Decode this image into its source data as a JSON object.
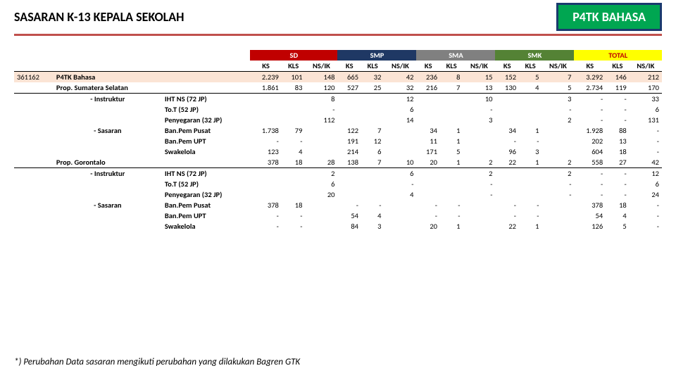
{
  "header": {
    "title": "SASARAN K-13 KEPALA SEKOLAH",
    "badge": "P4TK BAHASA"
  },
  "colors": {
    "accent_red": "#c00000",
    "smp": "#1f3864",
    "sma": "#808080",
    "smk": "#548235",
    "total_bg": "#ffff00",
    "code_row": "#fbe4d5",
    "badge_bg": "#00a651",
    "badge_border": "#1a3a6e"
  },
  "groups": [
    "SD",
    "SMP",
    "SMA",
    "SMK",
    "TOTAL"
  ],
  "subcols": [
    "KS",
    "KLS",
    "NS/IK"
  ],
  "rows": [
    {
      "class": "row-code",
      "c1": "361162",
      "c2": "P4TK Bahasa",
      "c2cls": "bcol lcol",
      "c3": "",
      "v": [
        "2.239",
        "101",
        "148",
        "665",
        "32",
        "42",
        "236",
        "8",
        "15",
        "152",
        "5",
        "7",
        "3.292",
        "146",
        "212"
      ]
    },
    {
      "class": "row-prop",
      "c1": "",
      "c2": "Prop. Sumatera Selatan",
      "c2cls": "bcol lcol",
      "c3": "",
      "v": [
        "1.861",
        "83",
        "120",
        "527",
        "25",
        "32",
        "216",
        "7",
        "13",
        "130",
        "4",
        "5",
        "2.734",
        "119",
        "170"
      ]
    },
    {
      "c1": "",
      "c2": "- Instruktur",
      "c2cls": "bcol ccol",
      "c3": "IHT NS (72 JP)",
      "c3cls": "bcol lcol",
      "v": [
        "",
        "",
        "8",
        "",
        "",
        "12",
        "",
        "",
        "10",
        "",
        "",
        "3",
        "-",
        "-",
        "33"
      ]
    },
    {
      "c1": "",
      "c2": "",
      "c3": "To.T (52 JP)",
      "c3cls": "bcol lcol",
      "v": [
        "",
        "",
        "-",
        "",
        "",
        "6",
        "",
        "",
        "-",
        "",
        "",
        "-",
        "-",
        "-",
        "6"
      ]
    },
    {
      "c1": "",
      "c2": "",
      "c3": "Penyegaran (32 JP)",
      "c3cls": "bcol lcol",
      "v": [
        "",
        "",
        "112",
        "",
        "",
        "14",
        "",
        "",
        "3",
        "",
        "",
        "2",
        "-",
        "-",
        "131"
      ]
    },
    {
      "c1": "",
      "c2": "- Sasaran",
      "c2cls": "bcol ccol",
      "c3": "Ban.Pem Pusat",
      "c3cls": "bcol lcol",
      "v": [
        "1.738",
        "79",
        "",
        "122",
        "7",
        "",
        "34",
        "1",
        "",
        "34",
        "1",
        "",
        "1.928",
        "88",
        "-"
      ]
    },
    {
      "c1": "",
      "c2": "",
      "c3": "Ban.Pem UPT",
      "c3cls": "bcol lcol",
      "v": [
        "-",
        "-",
        "",
        "191",
        "12",
        "",
        "11",
        "1",
        "",
        "-",
        "-",
        "",
        "202",
        "13",
        "-"
      ]
    },
    {
      "c1": "",
      "c2": "",
      "c3": "Swakelola",
      "c3cls": "bcol lcol",
      "v": [
        "123",
        "4",
        "",
        "214",
        "6",
        "",
        "171",
        "5",
        "",
        "96",
        "3",
        "",
        "604",
        "18",
        "-"
      ]
    },
    {
      "class": "row-prop",
      "c1": "",
      "c2": "Prop. Gorontalo",
      "c2cls": "bcol lcol",
      "c3": "",
      "v": [
        "378",
        "18",
        "28",
        "138",
        "7",
        "10",
        "20",
        "1",
        "2",
        "22",
        "1",
        "2",
        "558",
        "27",
        "42"
      ]
    },
    {
      "c1": "",
      "c2": "- Instruktur",
      "c2cls": "bcol ccol",
      "c3": "IHT NS (72 JP)",
      "c3cls": "bcol lcol",
      "v": [
        "",
        "",
        "2",
        "",
        "",
        "6",
        "",
        "",
        "2",
        "",
        "",
        "2",
        "-",
        "-",
        "12"
      ]
    },
    {
      "c1": "",
      "c2": "",
      "c3": "To.T (52 JP)",
      "c3cls": "bcol lcol",
      "v": [
        "",
        "",
        "6",
        "",
        "",
        "-",
        "",
        "",
        "-",
        "",
        "",
        "-",
        "-",
        "-",
        "6"
      ]
    },
    {
      "c1": "",
      "c2": "",
      "c3": "Penyegaran (32 JP)",
      "c3cls": "bcol lcol",
      "v": [
        "",
        "",
        "20",
        "",
        "",
        "4",
        "",
        "",
        "-",
        "",
        "",
        "-",
        "-",
        "-",
        "24"
      ]
    },
    {
      "c1": "",
      "c2": "- Sasaran",
      "c2cls": "bcol ccol",
      "c3": "Ban.Pem Pusat",
      "c3cls": "bcol lcol",
      "v": [
        "378",
        "18",
        "",
        "-",
        "-",
        "",
        "-",
        "-",
        "",
        "-",
        "-",
        "",
        "378",
        "18",
        "-"
      ]
    },
    {
      "c1": "",
      "c2": "",
      "c3": "Ban.Pem UPT",
      "c3cls": "bcol lcol",
      "v": [
        "-",
        "-",
        "",
        "54",
        "4",
        "",
        "-",
        "-",
        "",
        "-",
        "-",
        "",
        "54",
        "4",
        "-"
      ]
    },
    {
      "c1": "",
      "c2": "",
      "c3": "Swakelola",
      "c3cls": "bcol lcol",
      "v": [
        "-",
        "-",
        "",
        "84",
        "3",
        "",
        "20",
        "1",
        "",
        "22",
        "1",
        "",
        "126",
        "5",
        "-"
      ]
    }
  ],
  "footnote": "*) Perubahan Data sasaran mengikuti perubahan yang dilakukan Bagren GTK"
}
